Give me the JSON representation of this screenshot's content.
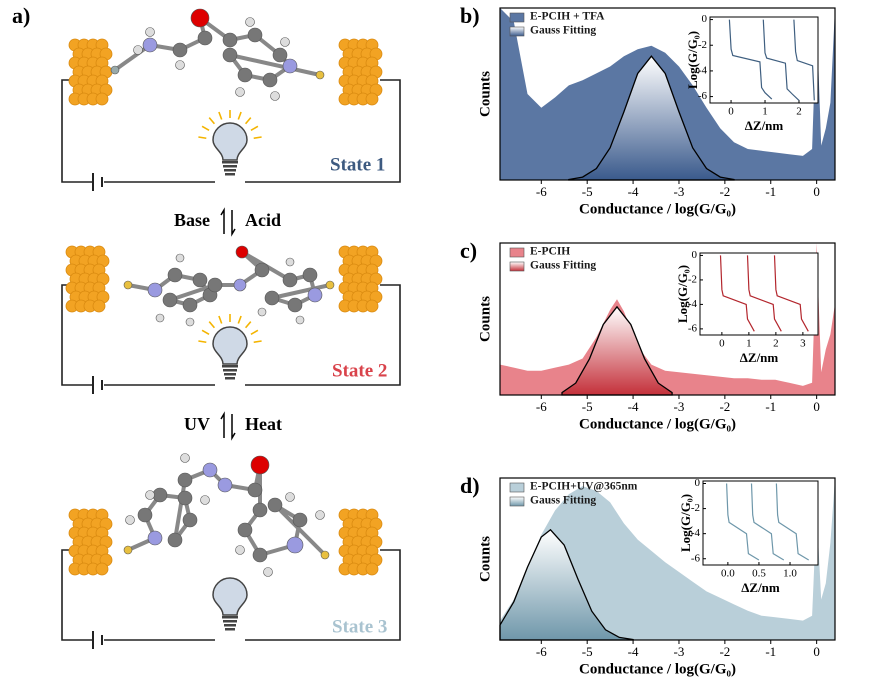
{
  "diagram": {
    "panel": "a)",
    "states": [
      "State 1",
      "State 2",
      "State 3"
    ],
    "switch1": [
      "Base",
      "Acid"
    ],
    "switch2": [
      "UV",
      "Heat"
    ]
  },
  "chart_data": [
    {
      "type": "area",
      "panel": "b)",
      "xlabel": "Conductance / log(G/G₀)",
      "ylabel": "Counts",
      "xlim": [
        -6.9,
        0.4
      ],
      "ylim": [
        0,
        100
      ],
      "xticks": [
        -6,
        -5,
        -4,
        -3,
        -2,
        -1,
        0
      ],
      "series": [
        {
          "name": "E-PCIH + TFA",
          "color": "#5b77a3",
          "x": [
            -6.9,
            -6.6,
            -6.3,
            -6.0,
            -5.7,
            -5.4,
            -5.1,
            -4.8,
            -4.5,
            -4.2,
            -3.9,
            -3.6,
            -3.3,
            -3.0,
            -2.7,
            -2.4,
            -2.1,
            -1.8,
            -1.5,
            -1.2,
            -0.9,
            -0.6,
            -0.3,
            -0.1,
            0.0,
            0.1,
            0.2,
            0.3,
            0.4
          ],
          "values": [
            100,
            92,
            50,
            42,
            48,
            55,
            58,
            62,
            66,
            72,
            76,
            78,
            74,
            66,
            55,
            42,
            30,
            22,
            18,
            17,
            16,
            15,
            14,
            18,
            95,
            20,
            30,
            45,
            100
          ]
        },
        {
          "name": "Gauss Fitting",
          "color": "#3a5a8c",
          "x": [
            -5.4,
            -5.1,
            -4.8,
            -4.5,
            -4.2,
            -3.9,
            -3.6,
            -3.3,
            -3.0,
            -2.7,
            -2.4,
            -2.1,
            -1.8
          ],
          "values": [
            0.3,
            1.7,
            6.7,
            18.7,
            39.6,
            61.9,
            72,
            61.9,
            39.6,
            18.7,
            6.7,
            1.7,
            0.3
          ]
        }
      ],
      "inset": {
        "xlabel": "ΔZ/nm",
        "ylabel": "Log(G/G₀)",
        "xlim": [
          -0.62,
          2.56
        ],
        "ylim": [
          -6.5,
          0.2
        ],
        "xticks": [
          0,
          1,
          2
        ],
        "yticks": [
          0,
          -2,
          -4,
          -6
        ],
        "color": "#3f5f80",
        "x": [
          -0.05,
          0.0,
          0.05,
          0.85,
          0.9,
          1.0,
          1.2,
          null,
          0.95,
          1.0,
          1.05,
          1.6,
          1.65,
          1.8,
          2.0,
          null,
          1.85,
          1.9,
          1.95,
          2.4,
          2.45
        ],
        "values": [
          0,
          -2.3,
          -2.8,
          -3.3,
          -5.3,
          -5.7,
          -6.2,
          null,
          0,
          -2.6,
          -3.0,
          -3.4,
          -5.4,
          -5.8,
          -6.3,
          null,
          0,
          -2.5,
          -3.2,
          -3.6,
          -6.3
        ]
      }
    },
    {
      "type": "area",
      "panel": "c)",
      "xlabel": "Conductance / log(G/G₀)",
      "ylabel": "Counts",
      "xlim": [
        -6.9,
        0.4
      ],
      "ylim": [
        0,
        100
      ],
      "xticks": [
        -6,
        -5,
        -4,
        -3,
        -2,
        -1,
        0
      ],
      "series": [
        {
          "name": "E-PCIH",
          "color": "#e8838b",
          "x": [
            -6.9,
            -6.6,
            -6.3,
            -6.0,
            -5.7,
            -5.4,
            -5.1,
            -4.8,
            -4.5,
            -4.35,
            -4.2,
            -3.9,
            -3.6,
            -3.3,
            -3.0,
            -2.7,
            -2.4,
            -2.1,
            -1.8,
            -1.5,
            -1.2,
            -0.9,
            -0.6,
            -0.3,
            -0.1,
            0.0,
            0.1,
            0.2,
            0.3,
            0.4
          ],
          "values": [
            20,
            18,
            16,
            16,
            18,
            20,
            24,
            38,
            56,
            63,
            55,
            32,
            20,
            16,
            15,
            14,
            13,
            12,
            11,
            11,
            10,
            10,
            8,
            6,
            8,
            100,
            15,
            30,
            40,
            60
          ]
        },
        {
          "name": "Gauss Fitting",
          "color": "#c4303a",
          "x": [
            -5.55,
            -5.25,
            -4.95,
            -4.65,
            -4.35,
            -4.05,
            -3.75,
            -3.45,
            -3.15
          ],
          "values": [
            1.6,
            7.8,
            23.8,
            46.4,
            58,
            46.4,
            23.8,
            7.8,
            1.6
          ]
        }
      ],
      "inset": {
        "xlabel": "ΔZ/nm",
        "ylabel": "Log(G/G₀)",
        "xlim": [
          -0.81,
          3.56
        ],
        "ylim": [
          -6.5,
          0.2
        ],
        "xticks": [
          0,
          1,
          2,
          3
        ],
        "yticks": [
          0,
          -2,
          -4,
          -6
        ],
        "color": "#b3262d",
        "x": [
          -0.05,
          0.0,
          0.05,
          0.9,
          0.95,
          1.2,
          null,
          0.95,
          1.0,
          1.05,
          1.9,
          1.95,
          2.2,
          null,
          1.95,
          2.0,
          2.05,
          2.9,
          2.95,
          3.2
        ],
        "values": [
          0,
          -2.8,
          -3.3,
          -4.0,
          -5.2,
          -6.2,
          null,
          0,
          -2.8,
          -3.3,
          -4.0,
          -5.2,
          -6.2,
          null,
          0,
          -2.8,
          -3.3,
          -4.0,
          -5.2,
          -6.2
        ]
      }
    },
    {
      "type": "area",
      "panel": "d)",
      "xlabel": "Conductance / log(G/G₀)",
      "ylabel": "Counts",
      "xlim": [
        -6.9,
        0.4
      ],
      "ylim": [
        0,
        100
      ],
      "xticks": [
        -6,
        -5,
        -4,
        -3,
        -2,
        -1,
        0
      ],
      "series": [
        {
          "name": "E-PCIH+UV@365nm",
          "color": "#b9cfd9",
          "x": [
            -6.9,
            -6.6,
            -6.3,
            -6.0,
            -5.7,
            -5.4,
            -5.1,
            -4.8,
            -4.5,
            -4.2,
            -3.9,
            -3.6,
            -3.3,
            -3.0,
            -2.7,
            -2.4,
            -2.1,
            -1.8,
            -1.5,
            -1.2,
            -0.9,
            -0.6,
            -0.3,
            -0.1,
            0.0,
            0.1,
            0.2,
            0.3,
            0.4
          ],
          "values": [
            12,
            25,
            45,
            65,
            80,
            90,
            95,
            92,
            85,
            72,
            62,
            55,
            48,
            42,
            36,
            30,
            26,
            22,
            18,
            15,
            14,
            13,
            12,
            15,
            80,
            25,
            35,
            60,
            100
          ]
        },
        {
          "name": "Gauss Fitting",
          "color": "#6f97aa",
          "x": [
            -6.9,
            -6.6,
            -6.3,
            -6.0,
            -5.8,
            -5.5,
            -5.2,
            -4.9,
            -4.6,
            -4.3,
            -4.0
          ],
          "values": [
            9.2,
            23.6,
            45,
            63.6,
            68,
            58.6,
            37.5,
            17.8,
            6.3,
            1.6,
            0.3
          ]
        }
      ],
      "inset": {
        "xlabel": "ΔZ/nm",
        "ylabel": "Log(G/G₀)",
        "xlim": [
          -0.4,
          1.45
        ],
        "ylim": [
          -6.5,
          0.2
        ],
        "xticks": [
          {
            "value": 0,
            "label": "0.0"
          },
          {
            "value": 0.5,
            "label": "0.5"
          },
          {
            "value": 1,
            "label": "1.0"
          }
        ],
        "yticks": [
          0,
          -2,
          -4,
          -6
        ],
        "color": "#6e97aa",
        "x": [
          -0.02,
          0.0,
          0.02,
          0.3,
          0.33,
          0.5,
          null,
          0.38,
          0.4,
          0.42,
          0.7,
          0.73,
          0.9,
          null,
          0.78,
          0.8,
          0.82,
          1.1,
          1.13,
          1.3
        ],
        "values": [
          0,
          -2.5,
          -3.1,
          -4.0,
          -5.6,
          -6.1,
          null,
          0,
          -2.5,
          -3.1,
          -4.0,
          -5.6,
          -6.1,
          null,
          0,
          -2.5,
          -3.1,
          -4.0,
          -5.6,
          -6.1
        ]
      }
    }
  ]
}
